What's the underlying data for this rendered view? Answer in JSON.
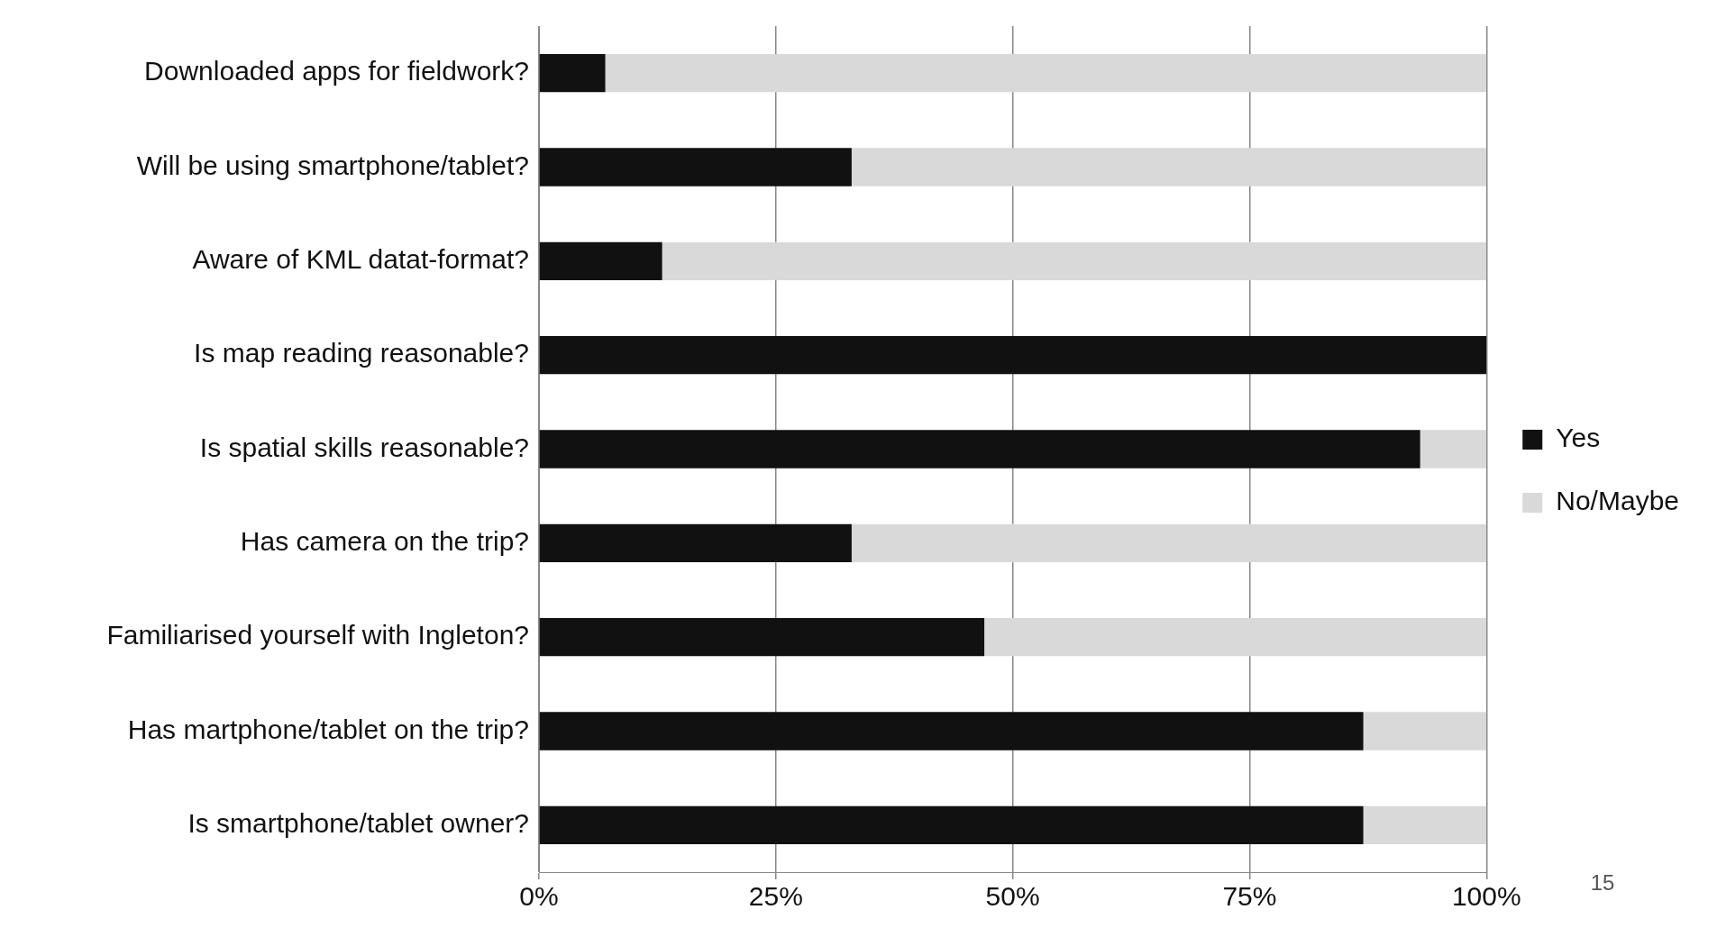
{
  "chart_data": {
    "type": "bar",
    "orientation": "horizontal",
    "stacked": true,
    "categories": [
      "Downloaded apps for fieldwork?",
      "Will be using smartphone/tablet?",
      "Aware of KML datat-format?",
      "Is map reading reasonable?",
      "Is spatial skills reasonable?",
      "Has camera on the trip?",
      "Familiarised yourself with Ingleton?",
      "Has martphone/tablet on the trip?",
      "Is smartphone/tablet owner?"
    ],
    "series": [
      {
        "name": "Yes",
        "color": "#111111",
        "values": [
          7,
          33,
          13,
          100,
          93,
          33,
          47,
          87,
          87
        ]
      },
      {
        "name": "No/Maybe",
        "color": "#d9d9d9",
        "values": [
          93,
          67,
          87,
          0,
          7,
          67,
          53,
          13,
          13
        ]
      }
    ],
    "xlim": [
      0,
      100
    ],
    "xticks": [
      {
        "value": 0,
        "label": "0%"
      },
      {
        "value": 25,
        "label": "25%"
      },
      {
        "value": 50,
        "label": "50%"
      },
      {
        "value": 75,
        "label": "75%"
      },
      {
        "value": 100,
        "label": "100%"
      }
    ],
    "grid": "x",
    "legend": "right",
    "annotations": [
      "15"
    ]
  }
}
